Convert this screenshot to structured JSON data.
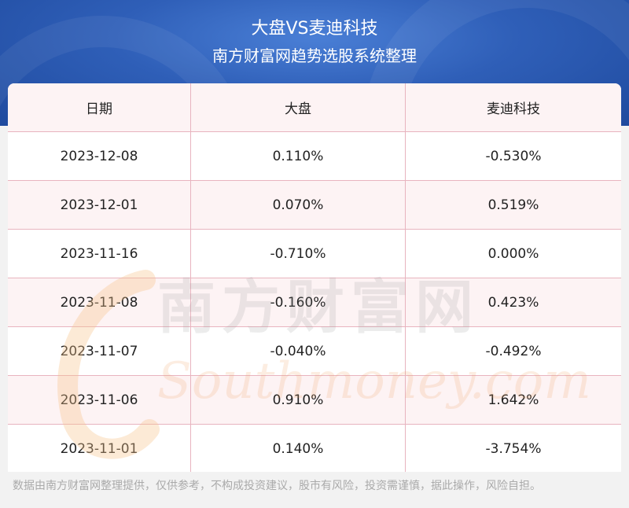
{
  "header": {
    "title": "大盘VS麦迪科技",
    "subtitle": "南方财富网趋势选股系统整理"
  },
  "table": {
    "columns": [
      "日期",
      "大盘",
      "麦迪科技"
    ],
    "rows": [
      [
        "2023-12-08",
        "0.110%",
        "-0.530%"
      ],
      [
        "2023-12-01",
        "0.070%",
        "0.519%"
      ],
      [
        "2023-11-16",
        "-0.710%",
        "0.000%"
      ],
      [
        "2023-11-08",
        "-0.160%",
        "0.423%"
      ],
      [
        "2023-11-07",
        "-0.040%",
        "-0.492%"
      ],
      [
        "2023-11-06",
        "0.910%",
        "1.642%"
      ],
      [
        "2023-11-01",
        "0.140%",
        "-3.754%"
      ]
    ]
  },
  "watermark": {
    "cn": "南方财富网",
    "en": "Southmoney.com"
  },
  "footer": {
    "disclaimer": "数据由南方财富网整理提供，仅供参考，不构成投资建议，股市有风险，投资需谨慎，据此操作，风险自担。"
  },
  "colors": {
    "header_blue": "#2f5fb8",
    "grid_line": "#e8b4bf",
    "row_alt": "#fdf3f4"
  }
}
